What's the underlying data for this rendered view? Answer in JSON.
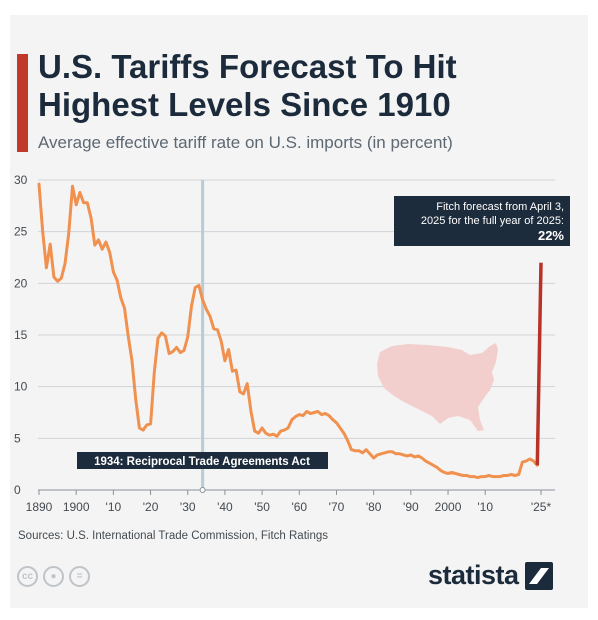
{
  "header": {
    "title": "U.S. Tariffs Forecast To Hit Highest Levels Since 1910",
    "subtitle": "Average effective tariff rate on U.S. imports (in percent)"
  },
  "colors": {
    "accent": "#c0392b",
    "line": "#f0914f",
    "forecast_line": "#b83227",
    "annotation_bg": "#1d2c3c",
    "grid": "#cfd4d9",
    "event_line": "#b8ccd8",
    "map": "#f2cfcd",
    "title": "#1c2b3c"
  },
  "chart_data": {
    "type": "line",
    "title": "U.S. Tariffs Forecast To Hit Highest Levels Since 1910",
    "subtitle": "Average effective tariff rate on U.S. imports (in percent)",
    "xlabel": "",
    "ylabel": "",
    "xlim": [
      1890,
      2025
    ],
    "ylim": [
      0,
      30
    ],
    "grid": true,
    "yticks": [
      0,
      5,
      10,
      15,
      20,
      25,
      30
    ],
    "xticks": [
      {
        "value": 1890,
        "label": "1890"
      },
      {
        "value": 1900,
        "label": "1900"
      },
      {
        "value": 1910,
        "label": "'10"
      },
      {
        "value": 1920,
        "label": "'20"
      },
      {
        "value": 1930,
        "label": "'30"
      },
      {
        "value": 1940,
        "label": "'40"
      },
      {
        "value": 1950,
        "label": "'50"
      },
      {
        "value": 1960,
        "label": "'60"
      },
      {
        "value": 1970,
        "label": "'70"
      },
      {
        "value": 1980,
        "label": "'80"
      },
      {
        "value": 1990,
        "label": "'90"
      },
      {
        "value": 2000,
        "label": "2000"
      },
      {
        "value": 2010,
        "label": "'10"
      },
      {
        "value": 2025,
        "label": "'25*"
      }
    ],
    "series": [
      {
        "x": [
          1890,
          1891,
          1892,
          1893,
          1894,
          1895,
          1896,
          1897,
          1898,
          1899,
          1900,
          1901,
          1902,
          1903,
          1904,
          1905,
          1906,
          1907,
          1908,
          1909,
          1910,
          1911,
          1912,
          1913,
          1914,
          1915,
          1916,
          1917,
          1918,
          1919,
          1920,
          1921,
          1922,
          1923,
          1924,
          1925,
          1926,
          1927,
          1928,
          1929,
          1930,
          1931,
          1932,
          1933,
          1934,
          1935,
          1936,
          1937,
          1938,
          1939,
          1940,
          1941,
          1942,
          1943,
          1944,
          1945,
          1946,
          1947,
          1948,
          1949,
          1950,
          1951,
          1952,
          1953,
          1954,
          1955,
          1956,
          1957,
          1958,
          1959,
          1960,
          1961,
          1962,
          1963,
          1964,
          1965,
          1966,
          1967,
          1968,
          1969,
          1970,
          1971,
          1972,
          1973,
          1974,
          1975,
          1976,
          1977,
          1978,
          1979,
          1980,
          1981,
          1982,
          1983,
          1984,
          1985,
          1986,
          1987,
          1988,
          1989,
          1990,
          1991,
          1992,
          1993,
          1994,
          1995,
          1996,
          1997,
          1998,
          1999,
          2000,
          2001,
          2002,
          2003,
          2004,
          2005,
          2006,
          2007,
          2008,
          2009,
          2010,
          2011,
          2012,
          2013,
          2014,
          2015,
          2016,
          2017,
          2018,
          2019,
          2020,
          2021,
          2022,
          2023,
          2024
        ],
        "values": [
          29.6,
          25.0,
          21.5,
          23.8,
          20.6,
          20.2,
          20.5,
          21.9,
          24.8,
          29.4,
          27.6,
          28.8,
          27.8,
          27.8,
          26.3,
          23.7,
          24.2,
          23.3,
          24.0,
          23.0,
          21.1,
          20.3,
          18.6,
          17.6,
          14.9,
          12.5,
          8.8,
          6.0,
          5.8,
          6.3,
          6.4,
          11.4,
          14.7,
          15.2,
          14.9,
          13.2,
          13.4,
          13.8,
          13.3,
          13.5,
          14.8,
          17.8,
          19.6,
          19.8,
          18.4,
          17.5,
          16.8,
          15.6,
          15.5,
          14.4,
          12.5,
          13.6,
          11.5,
          11.6,
          9.5,
          9.3,
          10.3,
          7.6,
          5.7,
          5.5,
          6.0,
          5.5,
          5.3,
          5.4,
          5.2,
          5.7,
          5.8,
          6.0,
          6.8,
          7.1,
          7.3,
          7.2,
          7.6,
          7.4,
          7.5,
          7.6,
          7.3,
          7.4,
          7.2,
          6.8,
          6.5,
          6.0,
          5.5,
          4.8,
          3.9,
          3.8,
          3.8,
          3.6,
          3.9,
          3.5,
          3.1,
          3.4,
          3.5,
          3.6,
          3.7,
          3.7,
          3.5,
          3.5,
          3.4,
          3.3,
          3.4,
          3.2,
          3.3,
          3.1,
          2.8,
          2.6,
          2.4,
          2.2,
          1.9,
          1.7,
          1.6,
          1.7,
          1.6,
          1.5,
          1.4,
          1.4,
          1.3,
          1.3,
          1.2,
          1.3,
          1.3,
          1.4,
          1.3,
          1.3,
          1.3,
          1.4,
          1.4,
          1.5,
          1.4,
          1.5,
          2.7,
          2.8,
          3.0,
          2.8,
          2.4
        ]
      },
      {
        "x": [
          2024,
          2025
        ],
        "values": [
          2.4,
          22.0
        ]
      }
    ],
    "annotations": {
      "event_year": 1934,
      "event_label": "1934: Reciprocal Trade Agreements Act",
      "forecast_text_1": "Fitch forecast from April 3,",
      "forecast_text_2": "2025 for the full year of 2025:",
      "forecast_value": "22%"
    }
  },
  "footer": {
    "source": "Sources: U.S. International Trade Commission, Fitch Ratings",
    "license_icons": [
      {
        "icon": "cc-icon",
        "glyph": "cc"
      },
      {
        "icon": "person-icon",
        "glyph": "●"
      },
      {
        "icon": "equals-icon",
        "glyph": "="
      }
    ],
    "brand": "statista"
  }
}
